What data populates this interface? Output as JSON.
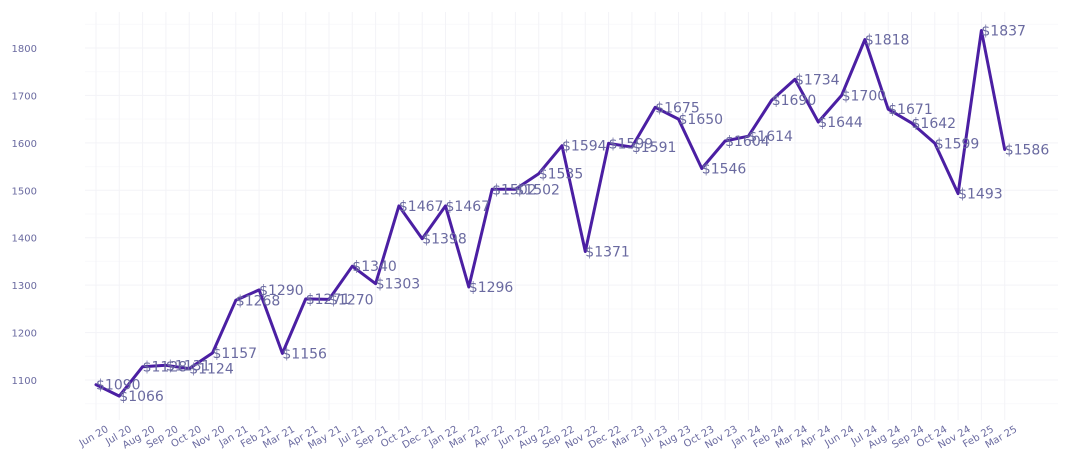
{
  "chart_data": {
    "type": "line",
    "title": "",
    "xlabel": "",
    "ylabel": "",
    "ylim": [
      1040,
      1880
    ],
    "yticks": [
      1100,
      1200,
      1300,
      1400,
      1500,
      1600,
      1700,
      1800
    ],
    "grid": true,
    "line_color": "#4b1fa3",
    "label_color": "#6a6aa0",
    "categories": [
      "Jun 20",
      "Jul 20",
      "Aug 20",
      "Sep 20",
      "Oct 20",
      "Nov 20",
      "Jan 21",
      "Feb 21",
      "Mar 21",
      "Apr 21",
      "May 21",
      "Jul 21",
      "Sep 21",
      "Oct 21",
      "Dec 21",
      "Jan 22",
      "Mar 22",
      "Apr 22",
      "Jun 22",
      "Aug 22",
      "Sep 22",
      "Nov 22",
      "Dec 22",
      "Mar 23",
      "Jul 23",
      "Aug 23",
      "Oct 23",
      "Nov 23",
      "Jan 24",
      "Feb 24",
      "Mar 24",
      "Apr 24",
      "Jun 24",
      "Jul 24",
      "Aug 24",
      "Sep 24",
      "Oct 24",
      "Nov 24",
      "Feb 25",
      "Mar 25"
    ],
    "values": [
      1090,
      1066,
      1128,
      1131,
      1124,
      1157,
      1268,
      1290,
      1156,
      1271,
      1270,
      1340,
      1303,
      1467,
      1398,
      1467,
      1296,
      1502,
      1502,
      1535,
      1594,
      1371,
      1599,
      1591,
      1675,
      1650,
      1546,
      1604,
      1614,
      1690,
      1734,
      1644,
      1700,
      1818,
      1671,
      1642,
      1599,
      1493,
      1837,
      1586
    ],
    "data_labels": [
      "$1090",
      "$1066",
      "$1128",
      "$1131",
      "$1124",
      "$1157",
      "$1268",
      "$1290",
      "$1156",
      "$1271",
      "$1270",
      "$1340",
      "$1303",
      "$1467",
      "$1398",
      "$1467",
      "$1296",
      "$1502",
      "$1502",
      "$1535",
      "$1594",
      "$1371",
      "$1599",
      "$1591",
      "$1675",
      "$1650",
      "$1546",
      "$1604",
      "$1614",
      "$1690",
      "$1734",
      "$1644",
      "$1700",
      "$1818",
      "$1671",
      "$1642",
      "$1599",
      "$1493",
      "$1837",
      "$1586"
    ]
  }
}
